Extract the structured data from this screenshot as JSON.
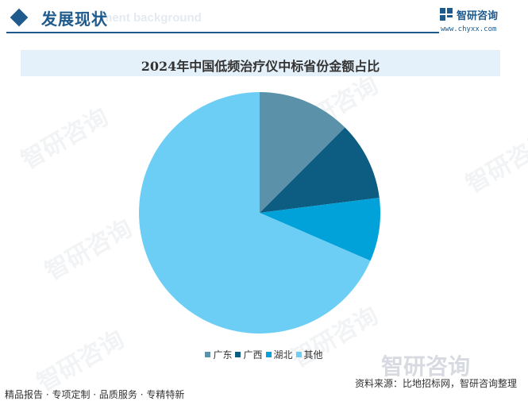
{
  "header": {
    "section_title": "发展现状",
    "section_subtitle": "ment background",
    "brand_name": "智研咨询",
    "brand_url": "www.chyxx.com"
  },
  "watermark": {
    "text": "智研咨询",
    "big_text": "智研咨询"
  },
  "chart_data": {
    "type": "pie",
    "title": "2024年中国低频治疗仪中标省份金额占比",
    "categories": [
      "广东",
      "广西",
      "湖北",
      "其他"
    ],
    "values": [
      12.5,
      10.5,
      8.5,
      68.5
    ],
    "colors": [
      "#5b92a9",
      "#0d5c82",
      "#00a2d9",
      "#6dcef5"
    ],
    "legend_position": "bottom"
  },
  "source": "资料来源：比地招标网，智研咨询整理",
  "footer": {
    "text": "精品报告 · 专项定制 · 品质服务 · 专精特新"
  }
}
